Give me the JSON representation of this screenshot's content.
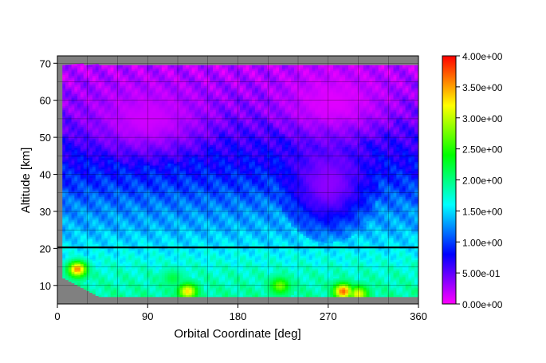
{
  "chart_data": {
    "type": "heatmap",
    "title": "",
    "xlabel": "Orbital Coordinate [deg]",
    "ylabel": "Altitude [km]",
    "xlim": [
      0,
      360
    ],
    "ylim": [
      5,
      72
    ],
    "xticks": [
      0,
      90,
      180,
      270,
      360
    ],
    "xtick_labels": [
      "0",
      "90",
      "180",
      "270",
      "360"
    ],
    "yticks": [
      10,
      20,
      30,
      40,
      50,
      60,
      70
    ],
    "ytick_labels": [
      "10",
      "20",
      "30",
      "40",
      "50",
      "60",
      "70"
    ],
    "grid": true,
    "grid_x_step": 30,
    "grid_y_step": 5,
    "background_color": "#808080",
    "reference_line": {
      "altitude": 20.3,
      "color": "#000000"
    },
    "colorbar": {
      "min": 0.0,
      "max": 4.0,
      "tick_values": [
        0.0,
        0.5,
        1.0,
        1.5,
        2.0,
        2.5,
        3.0,
        3.5,
        4.0
      ],
      "tick_labels": [
        "0.00e+00",
        "5.00e-01",
        "1.00e+00",
        "1.50e+00",
        "2.00e+00",
        "2.50e+00",
        "3.00e+00",
        "3.50e+00",
        "4.00e+00"
      ],
      "colors": [
        "#ff00ff",
        "#0000ff",
        "#00ffff",
        "#00ff00",
        "#ffff00",
        "#ff0000"
      ]
    },
    "data_extent": {
      "x_start": 5,
      "x_end": 358,
      "top_altitude": 69.5,
      "bottom_altitude": 7,
      "bottom_left_altitude": 12
    },
    "profile": {
      "altitudes": [
        7,
        10,
        13,
        16,
        20,
        23,
        26,
        30,
        34,
        38,
        43,
        50,
        57,
        63,
        69
      ],
      "values": [
        1.9,
        1.85,
        1.8,
        1.7,
        1.55,
        1.45,
        1.35,
        1.25,
        1.1,
        0.95,
        0.8,
        0.6,
        0.4,
        0.3,
        0.22
      ]
    },
    "hotspots": [
      {
        "x": 20,
        "y": 14.5,
        "value": 3.6
      },
      {
        "x": 130,
        "y": 8.5,
        "value": 3.3
      },
      {
        "x": 285,
        "y": 8.5,
        "value": 3.7
      },
      {
        "x": 300,
        "y": 7.8,
        "value": 3.2
      },
      {
        "x": 222,
        "y": 10,
        "value": 2.8
      },
      {
        "x": 115,
        "y": 12,
        "value": 2.2
      }
    ],
    "low_regions": [
      {
        "x_from": 30,
        "x_to": 150,
        "y_from": 45,
        "y_to": 65,
        "value": 0.15
      },
      {
        "x_from": 220,
        "x_to": 330,
        "y_from": 50,
        "y_to": 69,
        "value": 0.1
      },
      {
        "x_from": 230,
        "x_to": 310,
        "y_from": 25,
        "y_to": 50,
        "value": 0.35
      }
    ]
  }
}
